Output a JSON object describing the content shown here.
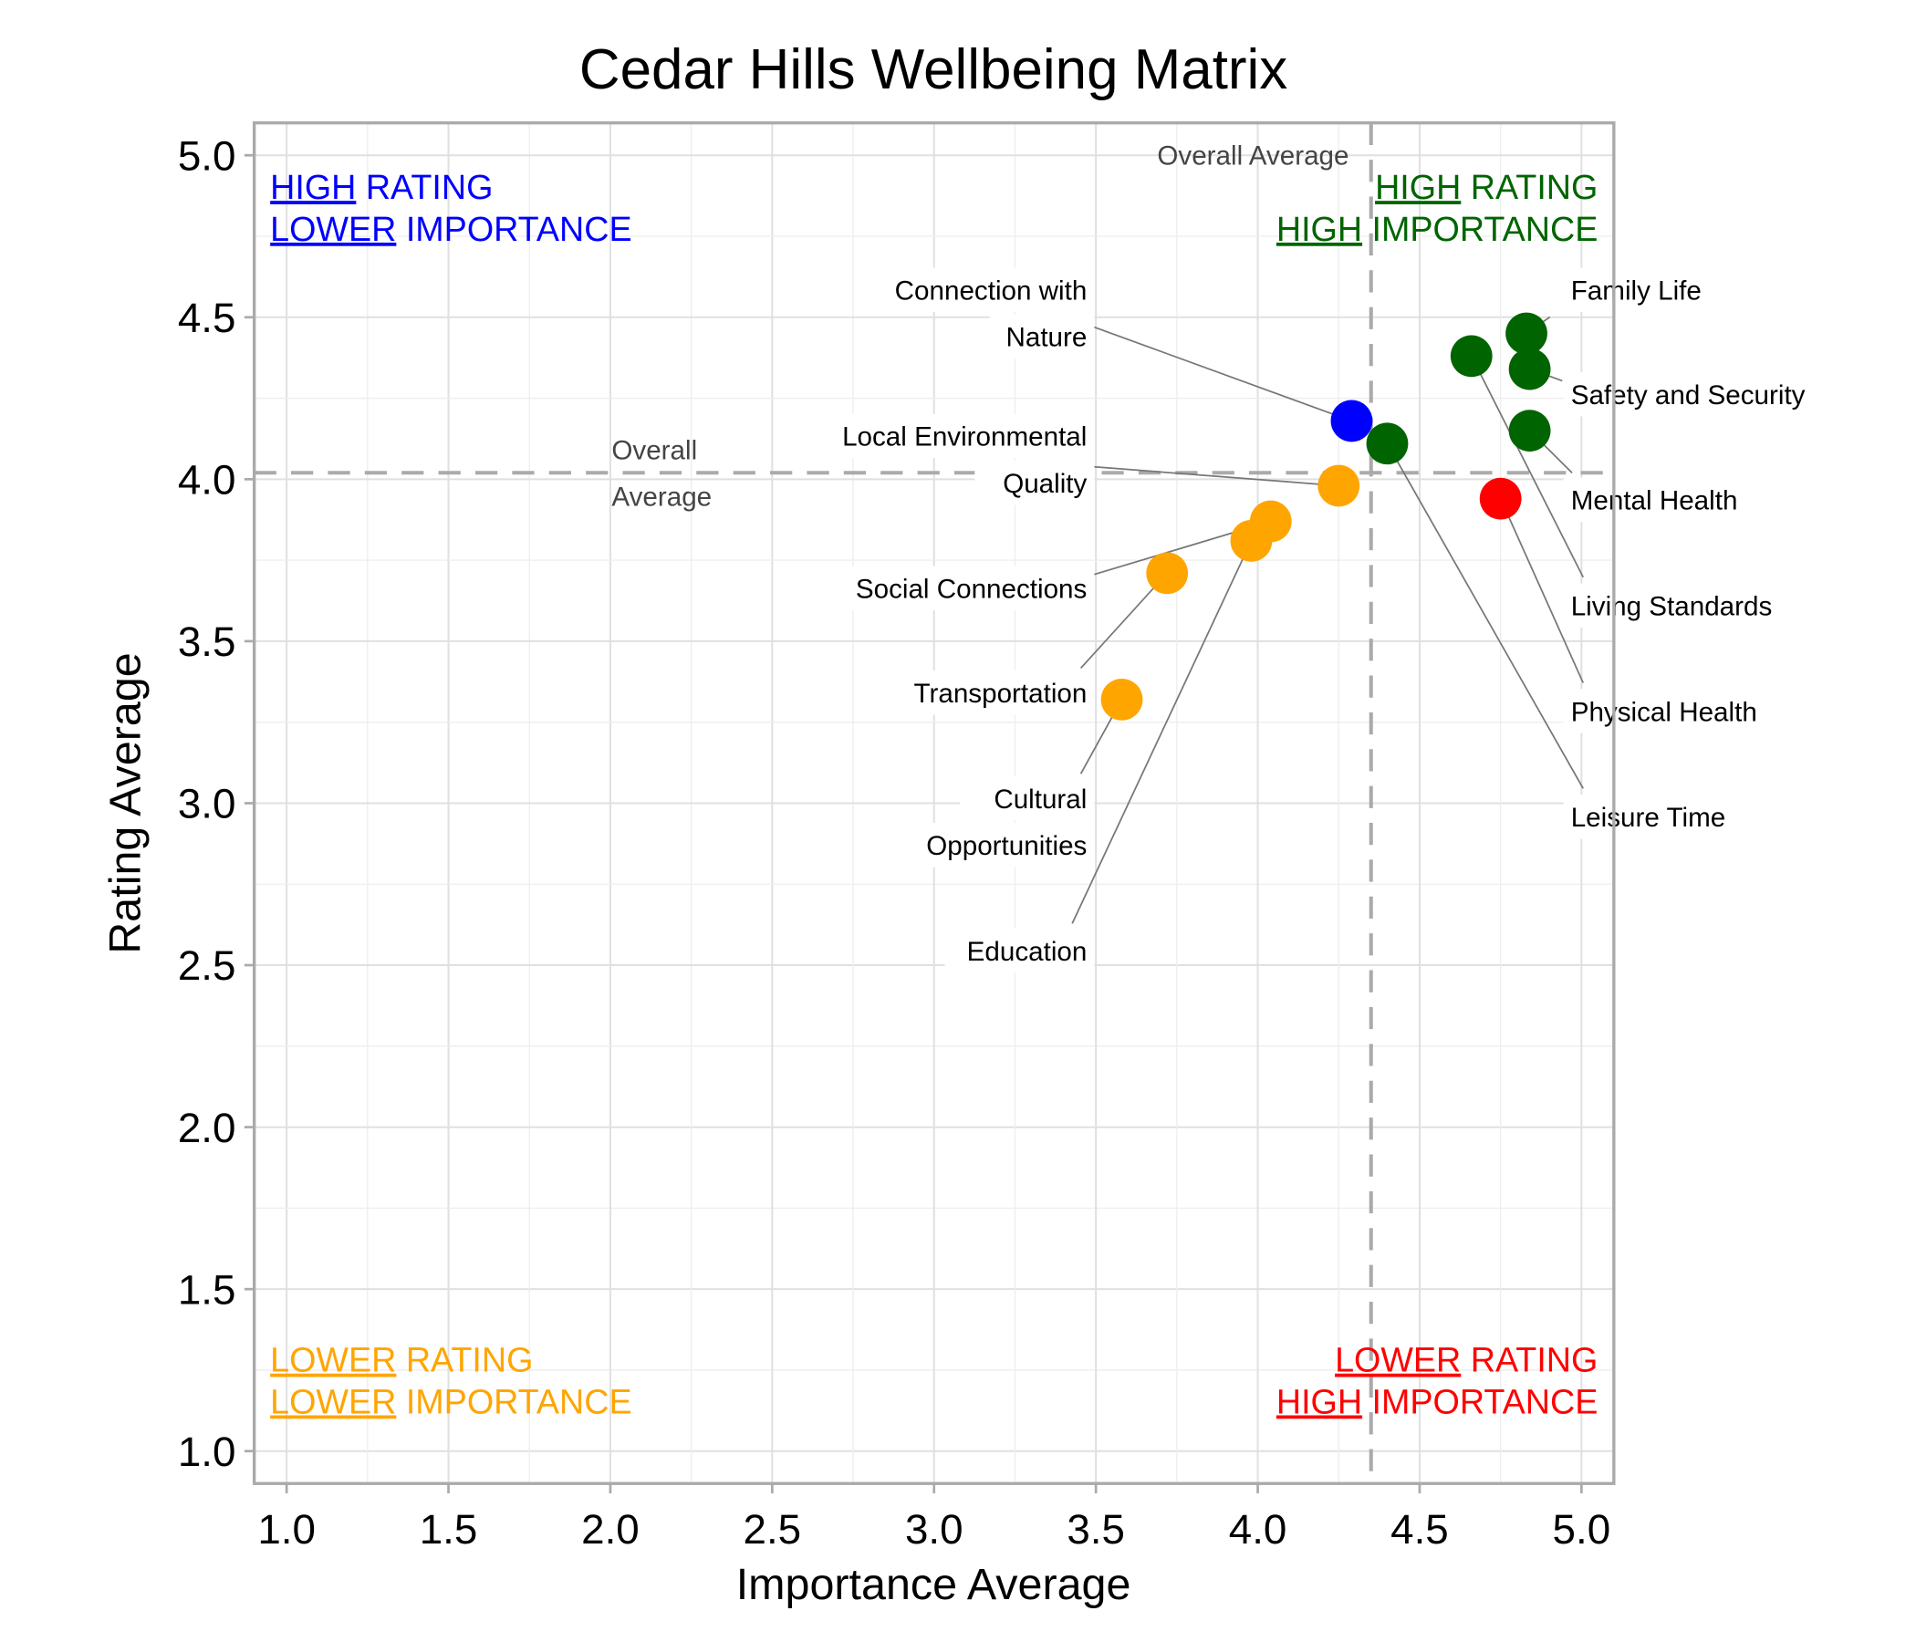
{
  "chart_data": {
    "type": "scatter",
    "title": "Cedar Hills Wellbeing Matrix",
    "xlabel": "Importance Average",
    "ylabel": "Rating Average",
    "xlim": [
      0.9,
      5.1
    ],
    "ylim": [
      0.9,
      5.1
    ],
    "xticks": [
      "1.0",
      "1.5",
      "2.0",
      "2.5",
      "3.0",
      "3.5",
      "4.0",
      "4.5",
      "5.0"
    ],
    "yticks": [
      "1.0",
      "1.5",
      "2.0",
      "2.5",
      "3.0",
      "3.5",
      "4.0",
      "4.5",
      "5.0"
    ],
    "grid": true,
    "colors": {
      "high_high": "#006400",
      "high_low": "#0000ff",
      "low_low": "#ffa500",
      "low_high": "#ff0000"
    },
    "averages": {
      "importance": 4.35,
      "rating": 4.02,
      "label": "Overall Average",
      "label_wrapped": [
        "Overall",
        "Average"
      ]
    },
    "points": [
      {
        "label": "Family Life",
        "x": 4.83,
        "y": 4.45,
        "quadrant": "high_high"
      },
      {
        "label": "Safety and Security",
        "x": 4.84,
        "y": 4.34,
        "quadrant": "high_high"
      },
      {
        "label": "Mental Health",
        "x": 4.84,
        "y": 4.15,
        "quadrant": "high_high"
      },
      {
        "label": "Living Standards",
        "x": 4.66,
        "y": 4.38,
        "quadrant": "high_high"
      },
      {
        "label": "Physical Health",
        "x": 4.75,
        "y": 3.94,
        "quadrant": "low_high"
      },
      {
        "label": "Leisure Time",
        "x": 4.4,
        "y": 4.11,
        "quadrant": "high_high"
      },
      {
        "label": "Connection with Nature",
        "label_lines": [
          "Connection with",
          "Nature"
        ],
        "x": 4.29,
        "y": 4.18,
        "quadrant": "high_low"
      },
      {
        "label": "Local Environmental Quality",
        "label_lines": [
          "Local Environmental",
          "Quality"
        ],
        "x": 4.25,
        "y": 3.98,
        "quadrant": "low_low"
      },
      {
        "label": "Social Connections",
        "x": 4.04,
        "y": 3.87,
        "quadrant": "low_low"
      },
      {
        "label": "Education",
        "x": 3.98,
        "y": 3.81,
        "quadrant": "low_low"
      },
      {
        "label": "Transportation",
        "x": 3.72,
        "y": 3.71,
        "quadrant": "low_low"
      },
      {
        "label": "Cultural Opportunities",
        "label_lines": [
          "Cultural",
          "Opportunities"
        ],
        "x": 3.58,
        "y": 3.32,
        "quadrant": "low_low"
      }
    ],
    "quadrant_labels": {
      "high_low": {
        "line1": [
          "HIGH",
          " RATING"
        ],
        "line2": [
          "LOWER",
          " IMPORTANCE"
        ]
      },
      "high_high": {
        "line1": [
          "HIGH",
          " RATING"
        ],
        "line2": [
          "HIGH",
          " IMPORTANCE"
        ]
      },
      "low_low": {
        "line1": [
          "LOWER",
          " RATING"
        ],
        "line2": [
          "LOWER",
          " IMPORTANCE"
        ]
      },
      "low_high": {
        "line1": [
          "LOWER",
          " RATING"
        ],
        "line2": [
          "HIGH",
          " IMPORTANCE"
        ]
      }
    }
  }
}
